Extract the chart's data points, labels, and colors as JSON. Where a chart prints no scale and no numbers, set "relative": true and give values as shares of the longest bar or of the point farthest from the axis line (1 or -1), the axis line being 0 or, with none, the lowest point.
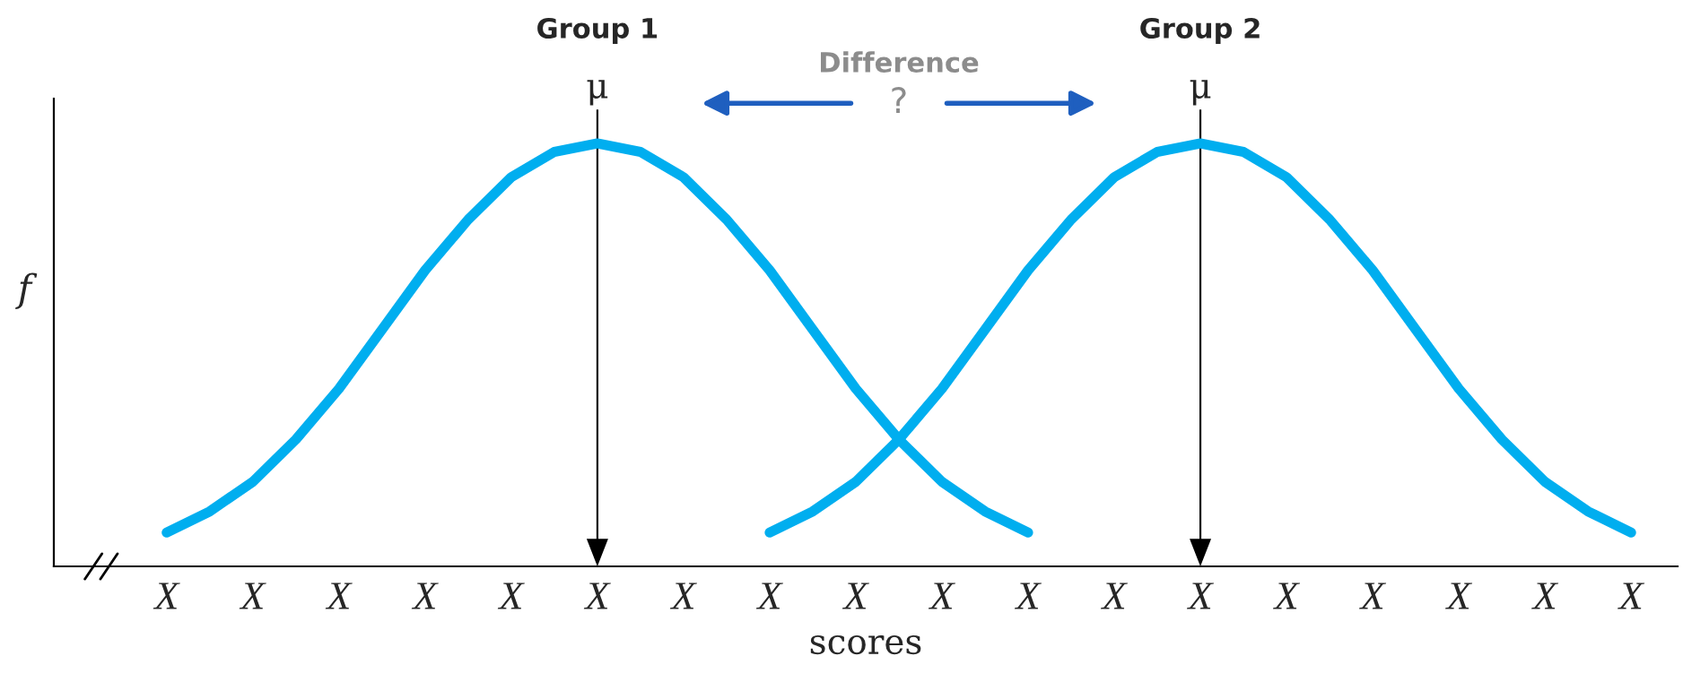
{
  "chart_data": {
    "type": "line",
    "relative": true,
    "xlabel": "scores",
    "ylabel": "f",
    "categories": [
      "X",
      null,
      "X",
      null,
      "X",
      null,
      "X",
      null,
      "X",
      null,
      "X",
      null,
      "X",
      null,
      "X",
      null,
      "X",
      null,
      "X",
      null,
      "X",
      null,
      "X",
      null,
      "X",
      null,
      "X",
      null,
      "X",
      null,
      "X",
      null,
      "X",
      null,
      "X"
    ],
    "series": [
      {
        "color": "#00aeef",
        "values": [
          0.08,
          0.13,
          0.2,
          0.3,
          0.42,
          0.56,
          0.7,
          0.82,
          0.92,
          0.98,
          1,
          0.98,
          0.92,
          0.82,
          0.7,
          0.56,
          0.42,
          0.3,
          0.2,
          0.13,
          0.08,
          null,
          null,
          null,
          null,
          null,
          null,
          null,
          null,
          null,
          null,
          null,
          null,
          null,
          null
        ]
      },
      {
        "color": "#00aeef",
        "values": [
          null,
          null,
          null,
          null,
          null,
          null,
          null,
          null,
          null,
          null,
          null,
          null,
          null,
          null,
          0.08,
          0.13,
          0.2,
          0.3,
          0.42,
          0.56,
          0.7,
          0.82,
          0.92,
          0.98,
          1,
          0.98,
          0.92,
          0.82,
          0.7,
          0.56,
          0.42,
          0.3,
          0.2,
          0.13,
          0.08
        ]
      }
    ],
    "annotations": [
      "Group 1",
      "Group 2",
      "μ",
      "μ",
      "Difference",
      "?"
    ],
    "legend": false,
    "grid": false,
    "marker": "none",
    "line_style": "solid"
  }
}
